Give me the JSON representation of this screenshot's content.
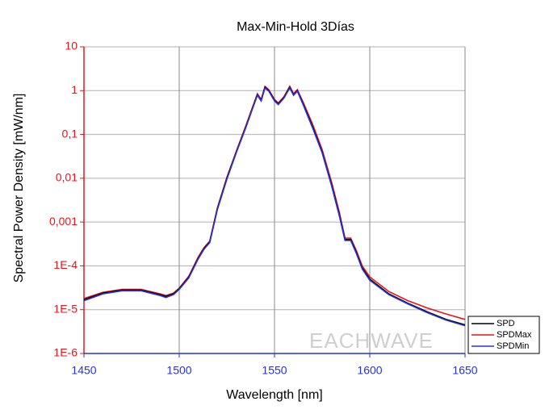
{
  "chart_data": {
    "type": "line",
    "title": "Max-Min-Hold 3Días",
    "xlabel": "Wavelength [nm]",
    "ylabel": "Spectral Power Density [mW/nm]",
    "watermark": "EACHWAVE",
    "x": [
      1450,
      1460,
      1470,
      1480,
      1490,
      1493,
      1497,
      1500,
      1505,
      1510,
      1513,
      1516,
      1520,
      1525,
      1530,
      1535,
      1538,
      1541,
      1543,
      1545,
      1547,
      1550,
      1552,
      1555,
      1558,
      1560,
      1562,
      1565,
      1570,
      1575,
      1580,
      1584,
      1587,
      1590,
      1593,
      1596,
      1600,
      1610,
      1620,
      1630,
      1640,
      1650
    ],
    "series": [
      {
        "name": "SPD",
        "color": "#000000",
        "values": [
          1.7e-05,
          2.4e-05,
          2.8e-05,
          2.8e-05,
          2.2e-05,
          2e-05,
          2.3e-05,
          3e-05,
          5.5e-05,
          0.00015,
          0.00025,
          0.00035,
          0.002,
          0.01,
          0.04,
          0.15,
          0.35,
          0.8,
          0.6,
          1.2,
          1.0,
          0.6,
          0.5,
          0.7,
          1.2,
          0.8,
          1.0,
          0.5,
          0.15,
          0.04,
          0.007,
          0.0015,
          0.0004,
          0.0004,
          0.0002,
          9e-05,
          5e-05,
          2.3e-05,
          1.4e-05,
          9e-06,
          6e-06,
          4.5e-06
        ]
      },
      {
        "name": "SPDMax",
        "color": "#e8141c",
        "values": [
          1.8e-05,
          2.5e-05,
          2.9e-05,
          2.9e-05,
          2.3e-05,
          2.1e-05,
          2.4e-05,
          3.1e-05,
          5.8e-05,
          0.00016,
          0.00026,
          0.00037,
          0.0021,
          0.0105,
          0.042,
          0.16,
          0.37,
          0.85,
          0.63,
          1.25,
          1.05,
          0.63,
          0.52,
          0.73,
          1.25,
          0.85,
          1.05,
          0.55,
          0.17,
          0.045,
          0.008,
          0.0017,
          0.00043,
          0.00043,
          0.00022,
          0.0001,
          5.6e-05,
          2.6e-05,
          1.6e-05,
          1.1e-05,
          8e-06,
          6e-06
        ]
      },
      {
        "name": "SPDMin",
        "color": "#2832d8",
        "values": [
          1.6e-05,
          2.3e-05,
          2.7e-05,
          2.7e-05,
          2.1e-05,
          1.9e-05,
          2.2e-05,
          2.9e-05,
          5.3e-05,
          0.000145,
          0.00024,
          0.00034,
          0.0019,
          0.0095,
          0.039,
          0.145,
          0.34,
          0.78,
          0.58,
          1.15,
          0.97,
          0.58,
          0.48,
          0.68,
          1.15,
          0.78,
          0.97,
          0.48,
          0.14,
          0.038,
          0.0066,
          0.0014,
          0.00038,
          0.00038,
          0.00019,
          8.5e-05,
          4.7e-05,
          2.2e-05,
          1.35e-05,
          8.6e-06,
          5.8e-06,
          4.3e-06
        ]
      }
    ],
    "xlim": [
      1450,
      1650
    ],
    "xticks": [
      1450,
      1500,
      1550,
      1600,
      1650
    ],
    "ylim": [
      1e-06,
      10
    ],
    "ylog": true,
    "yticks": [
      {
        "value": 1e-06,
        "label": "1E-6"
      },
      {
        "value": 1e-05,
        "label": "1E-5"
      },
      {
        "value": 0.0001,
        "label": "1E-4"
      },
      {
        "value": 0.001,
        "label": "0,001"
      },
      {
        "value": 0.01,
        "label": "0,01"
      },
      {
        "value": 0.1,
        "label": "0,1"
      },
      1,
      10
    ],
    "grid": true,
    "legend": "lower right"
  }
}
